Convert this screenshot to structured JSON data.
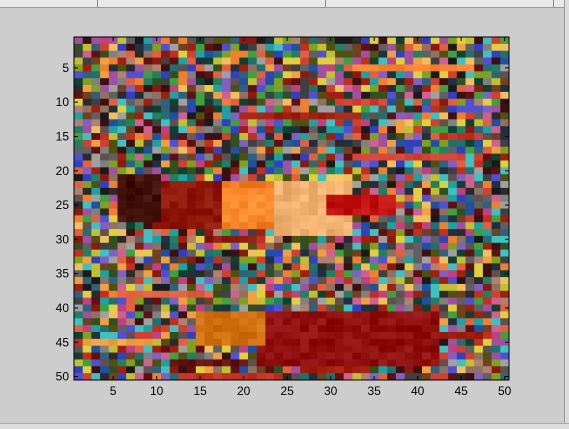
{
  "chart_data": {
    "type": "heatmap",
    "rows": 50,
    "cols": 50,
    "xlim": [
      0.5,
      50.5
    ],
    "ylim": [
      0.5,
      50.5
    ],
    "y_direction": "reversed",
    "x_ticks": [
      "5",
      "10",
      "15",
      "20",
      "25",
      "30",
      "35",
      "40",
      "45",
      "50"
    ],
    "y_ticks": [
      "5",
      "10",
      "15",
      "20",
      "25",
      "30",
      "35",
      "40",
      "45",
      "50"
    ],
    "seed": 7,
    "regions": [
      {
        "label": "orange-block",
        "x": [
          16,
          23
        ],
        "y": [
          22,
          28
        ],
        "color": "#f07a20"
      },
      {
        "label": "bright-orange-core",
        "x": [
          18,
          24
        ],
        "y": [
          23,
          27
        ],
        "color": "#ff8c30"
      },
      {
        "label": "peach-block",
        "x": [
          24,
          32
        ],
        "y": [
          22,
          29
        ],
        "color": "#f0b070"
      },
      {
        "label": "dark-red-block-left",
        "x": [
          10,
          17
        ],
        "y": [
          22,
          28
        ],
        "color": "#901808"
      },
      {
        "label": "dark-block-far-left",
        "x": [
          6,
          10
        ],
        "y": [
          21,
          27
        ],
        "color": "#401008"
      },
      {
        "label": "red-block-right",
        "x": [
          30,
          37
        ],
        "y": [
          24,
          26
        ],
        "color": "#c01010"
      },
      {
        "label": "dark-red-lower-block",
        "x": [
          22,
          42
        ],
        "y": [
          41,
          48
        ],
        "color": "#901010"
      },
      {
        "label": "orange-lower-block",
        "x": [
          15,
          22
        ],
        "y": [
          41,
          45
        ],
        "color": "#d07010"
      }
    ]
  }
}
